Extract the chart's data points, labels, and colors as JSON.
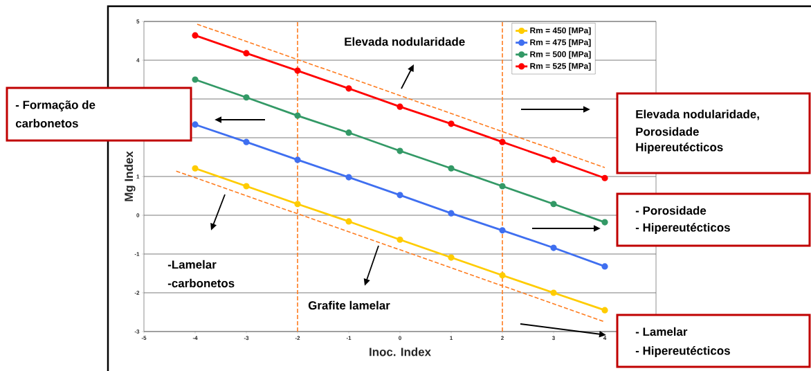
{
  "chart_data": {
    "type": "line",
    "xlabel": "Inoc. Index",
    "ylabel": "Mg Index",
    "x": [
      -4,
      -3,
      -2,
      -1,
      0,
      1,
      2,
      3,
      4
    ],
    "series": [
      {
        "name": "Rm = 450 [MPa]",
        "color": "#ffcc00",
        "values": [
          1.21,
          0.75,
          0.29,
          -0.16,
          -0.63,
          -1.09,
          -1.55,
          -2.0,
          -2.45
        ]
      },
      {
        "name": "Rm = 475 [MPa]",
        "color": "#3f6ff0",
        "values": [
          2.34,
          1.89,
          1.43,
          0.98,
          0.52,
          0.05,
          -0.39,
          -0.84,
          -1.32
        ]
      },
      {
        "name": "Rm = 500 [MPa]",
        "color": "#339966",
        "values": [
          3.5,
          3.04,
          2.57,
          2.13,
          1.66,
          1.21,
          0.75,
          0.29,
          -0.18
        ]
      },
      {
        "name": "Rm = 525 [MPa]",
        "color": "#ff0000",
        "values": [
          4.64,
          4.18,
          3.73,
          3.27,
          2.8,
          2.36,
          1.89,
          1.43,
          0.96
        ]
      },
      {
        "type": "line",
        "color": "#ff7c1f",
        "line_style": "dashed",
        "marker": "none",
        "x": [
          -3.96,
          4
        ],
        "values": [
          4.93,
          1.23
        ]
      },
      {
        "type": "line",
        "color": "#ff7c1f",
        "line_style": "dashed",
        "marker": "none",
        "x": [
          -4.37,
          4
        ],
        "values": [
          1.14,
          -2.75
        ]
      }
    ],
    "xlim": [
      -5,
      5
    ],
    "ylim": [
      -3,
      5
    ],
    "xticks": [
      -5,
      -4,
      -3,
      -2,
      -1,
      0,
      1,
      2,
      3,
      4
    ],
    "yticks": [
      -3,
      -2,
      -1,
      0,
      1,
      {
        "value": 2,
        "label": null
      },
      {
        "value": 3,
        "label": null
      },
      4,
      5
    ],
    "ref_lines": [
      {
        "axis": "x",
        "value": -2,
        "color": "#ff7c1f",
        "line_style": "dashed"
      },
      {
        "axis": "x",
        "value": 2,
        "color": "#ff7c1f",
        "line_style": "dashed"
      }
    ],
    "annotations": [
      "Elevada nodularidade",
      "- Formação de",
      "carbonetos",
      "Elevada nodularidade,",
      "Porosidade",
      "Hipereutécticos",
      "- Porosidade",
      "- Hipereutécticos",
      "-Lamelar",
      "-carbonetos",
      "Grafite lamelar",
      "- Lamelar",
      "- Hipereutécticos"
    ],
    "grid": "y",
    "legend": "top right",
    "marker": "circle",
    "line_style": "solid"
  }
}
